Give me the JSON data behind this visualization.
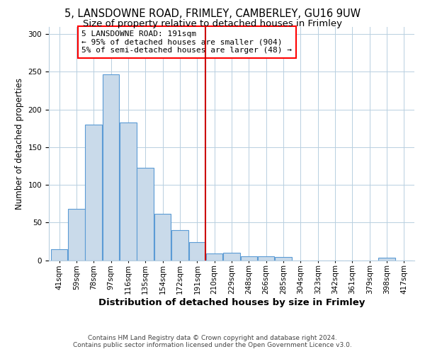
{
  "title1": "5, LANSDOWNE ROAD, FRIMLEY, CAMBERLEY, GU16 9UW",
  "title2": "Size of property relative to detached houses in Frimley",
  "xlabel": "Distribution of detached houses by size in Frimley",
  "ylabel": "Number of detached properties",
  "footer1": "Contains HM Land Registry data © Crown copyright and database right 2024.",
  "footer2": "Contains public sector information licensed under the Open Government Licence v3.0.",
  "annotation_line1": "5 LANSDOWNE ROAD: 191sqm",
  "annotation_line2": "← 95% of detached houses are smaller (904)",
  "annotation_line3": "5% of semi-detached houses are larger (48) →",
  "bar_color": "#c9daea",
  "bar_edge_color": "#5b9bd5",
  "vline_color": "#cc0000",
  "vline_x": 9,
  "categories": [
    "41sqm",
    "59sqm",
    "78sqm",
    "97sqm",
    "116sqm",
    "135sqm",
    "154sqm",
    "172sqm",
    "191sqm",
    "210sqm",
    "229sqm",
    "248sqm",
    "266sqm",
    "285sqm",
    "304sqm",
    "323sqm",
    "342sqm",
    "361sqm",
    "379sqm",
    "398sqm",
    "417sqm"
  ],
  "values": [
    15,
    68,
    180,
    247,
    183,
    123,
    62,
    40,
    24,
    9,
    10,
    5,
    5,
    4,
    0,
    0,
    0,
    0,
    0,
    3,
    0
  ],
  "bin_centers": [
    0,
    1,
    2,
    3,
    4,
    5,
    6,
    7,
    8,
    9,
    10,
    11,
    12,
    13,
    14,
    15,
    16,
    17,
    18,
    19,
    20
  ],
  "ylim": [
    0,
    310
  ],
  "yticks": [
    0,
    50,
    100,
    150,
    200,
    250,
    300
  ],
  "grid_color": "#b8cfe0",
  "background_color": "#ffffff",
  "title_fontsize": 10.5,
  "subtitle_fontsize": 9.5,
  "tick_fontsize": 7.5,
  "xlabel_fontsize": 9.5,
  "ylabel_fontsize": 8.5,
  "footer_fontsize": 6.5,
  "ann_fontsize": 8.0
}
